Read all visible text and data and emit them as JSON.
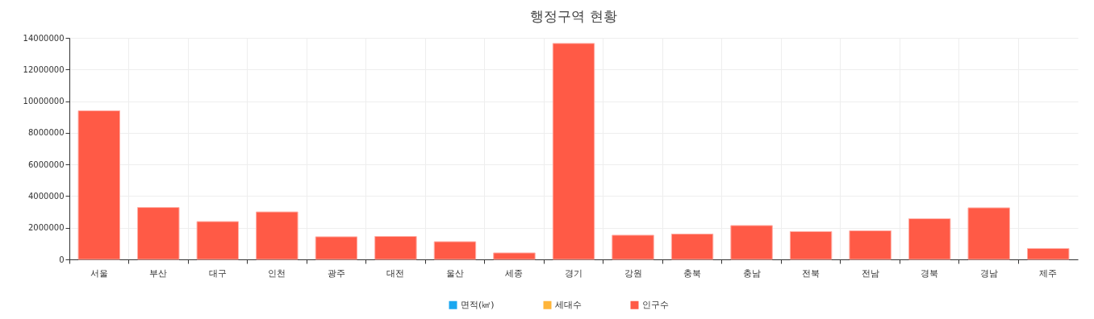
{
  "chart_data": {
    "type": "bar",
    "title": "행정구역 현황",
    "categories": [
      "서울",
      "부산",
      "대구",
      "인천",
      "광주",
      "대전",
      "울산",
      "세종",
      "경기",
      "강원",
      "충북",
      "충남",
      "전북",
      "전남",
      "경북",
      "경남",
      "제주"
    ],
    "series": [
      {
        "name": "면적(㎢)",
        "color": "#1aa7f0",
        "values": [
          null,
          null,
          null,
          null,
          null,
          null,
          null,
          null,
          null,
          null,
          null,
          null,
          null,
          null,
          null,
          null,
          null
        ]
      },
      {
        "name": "세대수",
        "color": "#ffb53a",
        "values": [
          null,
          null,
          null,
          null,
          null,
          null,
          null,
          null,
          null,
          null,
          null,
          null,
          null,
          null,
          null,
          null,
          null
        ]
      },
      {
        "name": "인구수",
        "color": "#ff5a46",
        "values": [
          9390000,
          3280000,
          2390000,
          3000000,
          1430000,
          1450000,
          1120000,
          410000,
          13650000,
          1530000,
          1600000,
          2140000,
          1760000,
          1810000,
          2570000,
          3260000,
          690000
        ]
      }
    ],
    "ylim": [
      0,
      14000000
    ],
    "yticks": [
      0,
      2000000,
      4000000,
      6000000,
      8000000,
      10000000,
      12000000,
      14000000
    ],
    "grid": true,
    "legend": "bottom"
  }
}
